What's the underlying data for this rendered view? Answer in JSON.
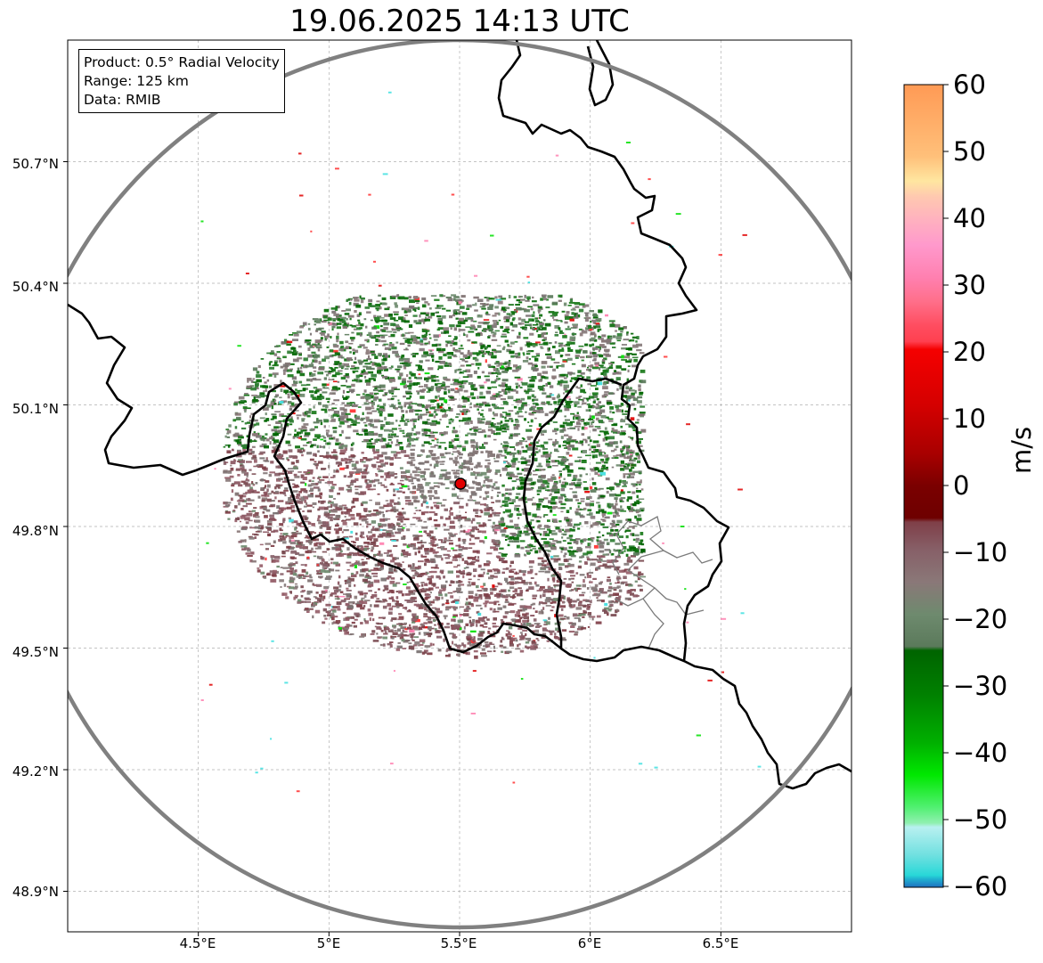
{
  "title": "19.06.2025 14:13 UTC",
  "info": {
    "product": "Product: 0.5° Radial Velocity",
    "range": "Range: 125 km",
    "data": "Data: RMIB"
  },
  "map": {
    "lon_range": [
      4.0,
      7.0
    ],
    "lat_range": [
      48.8,
      51.0
    ],
    "radar_site": {
      "lon": 5.505,
      "lat": 49.915
    },
    "range_ring_color": "#808080",
    "radar_marker_color": "#e00000",
    "x_ticks": [
      "4.5°E",
      "5°E",
      "5.5°E",
      "6°E",
      "6.5°E"
    ],
    "y_ticks": [
      "50.7°N",
      "50.4°N",
      "50.1°N",
      "49.8°N",
      "49.5°N",
      "49.2°N",
      "48.9°N"
    ]
  },
  "colorbar": {
    "unit": "m/s",
    "min": -60,
    "max": 60,
    "ticks": [
      "60",
      "50",
      "40",
      "30",
      "20",
      "10",
      "0",
      "−10",
      "−20",
      "−30",
      "−40",
      "−50",
      "−60"
    ]
  }
}
